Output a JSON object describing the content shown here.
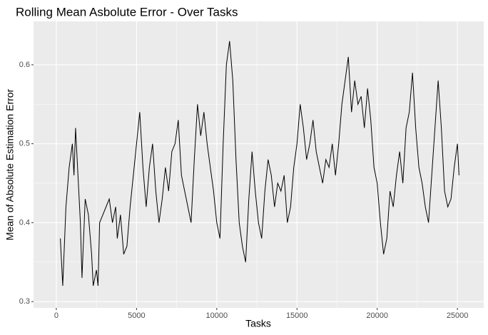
{
  "chart_data": {
    "type": "line",
    "title": "Rolling Mean Asbolute Error - Over Tasks",
    "x_label": "Tasks",
    "y_label": "Mean of Absolute Estimation Error",
    "x": [
      250,
      400,
      600,
      800,
      1000,
      1100,
      1200,
      1400,
      1500,
      1600,
      1800,
      2000,
      2200,
      2300,
      2500,
      2600,
      2700,
      2900,
      3100,
      3300,
      3500,
      3700,
      3800,
      4000,
      4200,
      4400,
      4600,
      4800,
      5000,
      5200,
      5400,
      5600,
      5800,
      6000,
      6200,
      6400,
      6600,
      6800,
      7000,
      7200,
      7400,
      7600,
      7800,
      8000,
      8200,
      8400,
      8600,
      8800,
      9000,
      9200,
      9400,
      9600,
      9800,
      10000,
      10200,
      10400,
      10600,
      10800,
      11000,
      11200,
      11400,
      11600,
      11800,
      12000,
      12200,
      12400,
      12600,
      12800,
      13000,
      13200,
      13400,
      13600,
      13800,
      14000,
      14200,
      14400,
      14600,
      14800,
      15000,
      15200,
      15400,
      15600,
      15800,
      16000,
      16200,
      16400,
      16600,
      16800,
      17000,
      17200,
      17400,
      17600,
      17800,
      18000,
      18200,
      18400,
      18600,
      18800,
      19000,
      19200,
      19400,
      19600,
      19800,
      20000,
      20200,
      20400,
      20600,
      20800,
      21000,
      21200,
      21400,
      21600,
      21800,
      22000,
      22200,
      22400,
      22600,
      22800,
      23000,
      23200,
      23400,
      23600,
      23800,
      24000,
      24200,
      24400,
      24600,
      24800,
      25000,
      25100
    ],
    "series": [
      {
        "color": "#000000",
        "values": [
          0.38,
          0.32,
          0.42,
          0.47,
          0.5,
          0.46,
          0.52,
          0.44,
          0.4,
          0.33,
          0.43,
          0.41,
          0.36,
          0.32,
          0.34,
          0.32,
          0.4,
          0.41,
          0.42,
          0.43,
          0.4,
          0.42,
          0.38,
          0.41,
          0.36,
          0.37,
          0.42,
          0.46,
          0.5,
          0.54,
          0.47,
          0.42,
          0.47,
          0.5,
          0.44,
          0.4,
          0.43,
          0.47,
          0.44,
          0.49,
          0.5,
          0.53,
          0.46,
          0.44,
          0.42,
          0.4,
          0.48,
          0.55,
          0.51,
          0.54,
          0.5,
          0.47,
          0.44,
          0.4,
          0.38,
          0.5,
          0.6,
          0.63,
          0.58,
          0.48,
          0.4,
          0.37,
          0.35,
          0.43,
          0.49,
          0.44,
          0.4,
          0.38,
          0.44,
          0.48,
          0.46,
          0.42,
          0.45,
          0.44,
          0.46,
          0.4,
          0.42,
          0.47,
          0.5,
          0.55,
          0.52,
          0.48,
          0.5,
          0.53,
          0.49,
          0.47,
          0.45,
          0.48,
          0.47,
          0.5,
          0.46,
          0.5,
          0.55,
          0.58,
          0.61,
          0.54,
          0.58,
          0.55,
          0.56,
          0.52,
          0.57,
          0.53,
          0.47,
          0.45,
          0.4,
          0.36,
          0.38,
          0.44,
          0.42,
          0.46,
          0.49,
          0.45,
          0.52,
          0.54,
          0.59,
          0.52,
          0.47,
          0.45,
          0.42,
          0.4,
          0.46,
          0.52,
          0.58,
          0.52,
          0.44,
          0.42,
          0.43,
          0.47,
          0.5,
          0.46
        ]
      }
    ],
    "xlim": [
      -1420,
      26640
    ],
    "ylim": [
      0.292,
      0.655
    ],
    "xticks": [
      0,
      5000,
      10000,
      15000,
      20000,
      25000
    ],
    "yticks": [
      0.3,
      0.4,
      0.5,
      0.6
    ],
    "grid": true
  }
}
